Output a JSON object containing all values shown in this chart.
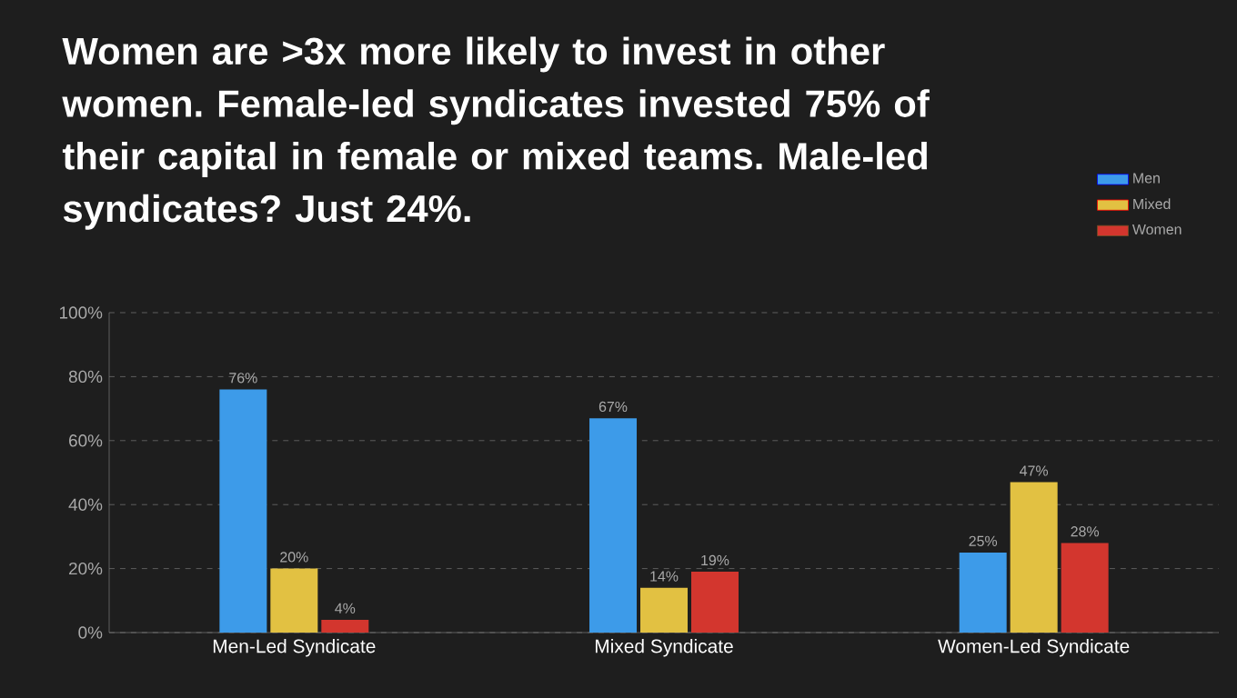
{
  "chart_data": {
    "type": "bar",
    "title": "Women are >3x more likely to invest in other women. Female-led syndicates invested 75% of their capital in female or mixed teams. Male-led syndicates? Just 24%.",
    "categories": [
      "Men-Led Syndicate",
      "Mixed Syndicate",
      "Women-Led Syndicate"
    ],
    "series": [
      {
        "name": "Men",
        "color": "#3d9be9",
        "values": [
          76,
          67,
          25
        ],
        "value_labels": [
          "76%",
          "67%",
          "25%"
        ]
      },
      {
        "name": "Mixed",
        "color": "#e2c142",
        "values": [
          20,
          14,
          47
        ],
        "value_labels": [
          "20%",
          "14%",
          "47%"
        ]
      },
      {
        "name": "Women",
        "color": "#d3362e",
        "values": [
          4,
          19,
          28
        ],
        "value_labels": [
          "4%",
          "19%",
          "28%"
        ]
      }
    ],
    "ylim": [
      0,
      100
    ],
    "yticks": [
      {
        "value": 0,
        "label": "0%"
      },
      {
        "value": 20,
        "label": "20%"
      },
      {
        "value": 40,
        "label": "40%"
      },
      {
        "value": 60,
        "label": "60%"
      },
      {
        "value": 80,
        "label": "80%"
      },
      {
        "value": 100,
        "label": "100%"
      }
    ],
    "grid": "y",
    "legend": "top right"
  }
}
